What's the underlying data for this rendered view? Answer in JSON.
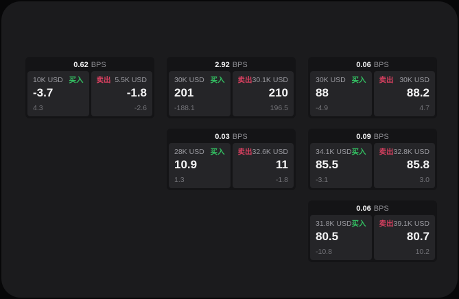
{
  "app": {
    "colors": {
      "background": "#070708",
      "panel_bg": "#1b1b1d",
      "card_bg": "#141416",
      "tile_bg": "#252528",
      "buy_color": "#33c062",
      "sell_color": "#d84060"
    }
  },
  "labels": {
    "buy": "买入",
    "sell": "卖出",
    "bps_unit": "BPS"
  },
  "cards": [
    {
      "row": 1,
      "col": 1,
      "bps": "0.62",
      "buy_amount": "10K USD",
      "buy_value": "-3.7",
      "buy_sub": "4.3",
      "sell_amount": "5.5K USD",
      "sell_value": "-1.8",
      "sell_sub": "-2.6"
    },
    {
      "row": 1,
      "col": 2,
      "bps": "2.92",
      "buy_amount": "30K USD",
      "buy_value": "201",
      "buy_sub": "-188.1",
      "sell_amount": "30.1K USD",
      "sell_value": "210",
      "sell_sub": "196.5"
    },
    {
      "row": 1,
      "col": 3,
      "bps": "0.06",
      "buy_amount": "30K USD",
      "buy_value": "88",
      "buy_sub": "-4.9",
      "sell_amount": "30K USD",
      "sell_value": "88.2",
      "sell_sub": "4.7"
    },
    {
      "row": 2,
      "col": 2,
      "bps": "0.03",
      "buy_amount": "28K USD",
      "buy_value": "10.9",
      "buy_sub": "1.3",
      "sell_amount": "32.6K USD",
      "sell_value": "11",
      "sell_sub": "-1.8"
    },
    {
      "row": 2,
      "col": 3,
      "bps": "0.09",
      "buy_amount": "34.1K USD",
      "buy_value": "85.5",
      "buy_sub": "-3.1",
      "sell_amount": "32.8K USD",
      "sell_value": "85.8",
      "sell_sub": "3.0"
    },
    {
      "row": 3,
      "col": 3,
      "bps": "0.06",
      "buy_amount": "31.8K USD",
      "buy_value": "80.5",
      "buy_sub": "-10.8",
      "sell_amount": "39.1K USD",
      "sell_value": "80.7",
      "sell_sub": "10.2"
    }
  ]
}
